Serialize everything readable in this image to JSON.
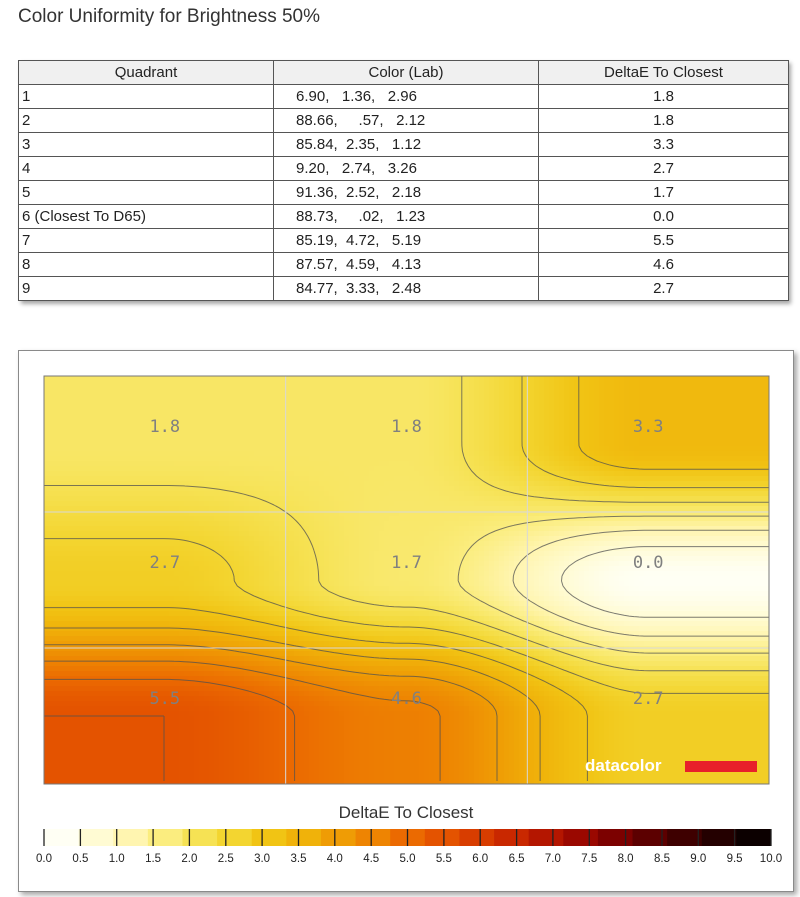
{
  "page": {
    "title": "Color Uniformity for Brightness 50%"
  },
  "table": {
    "headers": [
      "Quadrant",
      "Color (Lab)",
      "DeltaE To Closest"
    ],
    "rows": [
      [
        "1",
        "6.90,   1.36,   2.96",
        "1.8"
      ],
      [
        "2",
        "88.66,     .57,   2.12",
        "1.8"
      ],
      [
        "3",
        "85.84,  2.35,   1.12",
        "3.3"
      ],
      [
        "4",
        "9.20,   2.74,   3.26",
        "2.7"
      ],
      [
        "5",
        "91.36,  2.52,   2.18",
        "1.7"
      ],
      [
        "6 (Closest To D65)",
        "88.73,     .02,   1.23",
        "0.0"
      ],
      [
        "7",
        "85.19,  4.72,   5.19",
        "5.5"
      ],
      [
        "8",
        "87.57,  4.59,   4.13",
        "4.6"
      ],
      [
        "9",
        "84.77,  3.33,   2.48",
        "2.7"
      ]
    ]
  },
  "chart_data": {
    "type": "heatmap",
    "grid": {
      "rows": 3,
      "cols": 3
    },
    "values": [
      [
        1.8,
        1.8,
        3.3
      ],
      [
        2.7,
        1.7,
        0.0
      ],
      [
        5.5,
        4.6,
        2.7
      ]
    ],
    "cell_labels": [
      [
        "1.8",
        "1.8",
        "3.3"
      ],
      [
        "2.7",
        "1.7",
        "0.0"
      ],
      [
        "5.5",
        "4.6",
        "2.7"
      ]
    ],
    "contours": true,
    "colorbar": {
      "title": "DeltaE To Closest",
      "range": [
        0,
        10
      ],
      "ticks": [
        "0.0",
        "0.5",
        "1.0",
        "1.5",
        "2.0",
        "2.5",
        "3.0",
        "3.5",
        "4.0",
        "4.5",
        "5.0",
        "5.5",
        "6.0",
        "6.5",
        "7.0",
        "7.5",
        "8.0",
        "8.5",
        "9.0",
        "9.5",
        "10.0"
      ],
      "colors": [
        "#fffff4",
        "#fffbd3",
        "#fff5b0",
        "#fbed7f",
        "#f6e254",
        "#f3d530",
        "#f1c414",
        "#f0b20a",
        "#ef9c05",
        "#ee8402",
        "#eb6a01",
        "#e45300",
        "#d83d00",
        "#c92800",
        "#b41600",
        "#9a0800",
        "#7c0100",
        "#5c0000",
        "#3e0000",
        "#240000",
        "#0c0000"
      ]
    },
    "watermark": "datacolor",
    "colors": {
      "watermark_bar": "#e8202a",
      "grid": "#d8d8d8",
      "contour": "#505050"
    }
  }
}
